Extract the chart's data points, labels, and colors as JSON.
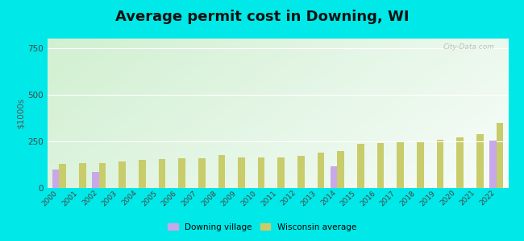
{
  "title": "Average permit cost in Downing, WI",
  "ylabel": "$1000s",
  "years": [
    2000,
    2001,
    2002,
    2003,
    2004,
    2005,
    2006,
    2007,
    2008,
    2009,
    2010,
    2011,
    2012,
    2013,
    2014,
    2015,
    2016,
    2017,
    2018,
    2019,
    2020,
    2021,
    2022
  ],
  "downing": [
    100,
    0,
    85,
    0,
    0,
    0,
    0,
    0,
    0,
    0,
    0,
    0,
    0,
    0,
    115,
    0,
    0,
    0,
    0,
    0,
    0,
    0,
    255
  ],
  "wisconsin": [
    130,
    132,
    132,
    140,
    150,
    155,
    160,
    160,
    175,
    165,
    165,
    165,
    170,
    190,
    200,
    235,
    240,
    248,
    250,
    260,
    270,
    290,
    350
  ],
  "downing_color": "#c8a8e8",
  "wisconsin_color": "#c8cc6a",
  "background_outer": "#00e8e8",
  "ylim": [
    0,
    800
  ],
  "yticks": [
    0,
    250,
    500,
    750
  ],
  "title_fontsize": 13,
  "bar_width": 0.35,
  "legend_downing": "Downing village",
  "legend_wisconsin": "Wisconsin average",
  "gradient_colors": [
    "#a8d8a0",
    "#f0f8e8",
    "#e8f8f0",
    "#ffffff"
  ],
  "watermark": "City-Data.com"
}
